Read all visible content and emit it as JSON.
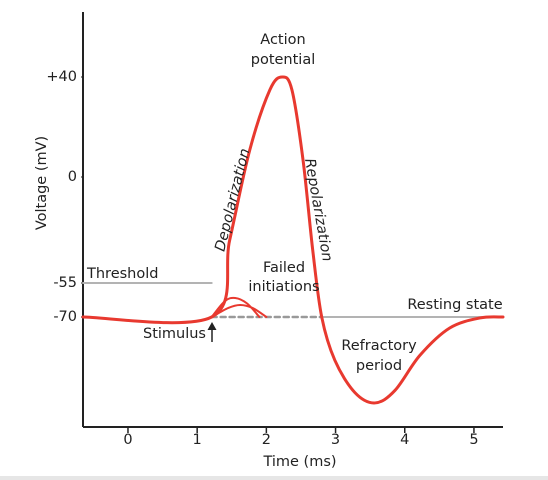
{
  "chart_data": {
    "type": "line",
    "xlabel": "Time (ms)",
    "ylabel": "Voltage (mV)",
    "xlim": [
      -0.65,
      5.42
    ],
    "ylim": [
      -118,
      66
    ],
    "xticks": [
      0,
      1,
      2,
      3,
      4,
      5
    ],
    "yticks": [
      {
        "value": 40,
        "label": "+40"
      },
      0,
      -55,
      -70
    ],
    "series": [
      {
        "color": "#b3b3b3",
        "width": 2,
        "dash": false,
        "x": [
          -0.65,
          1.21
        ],
        "values": [
          -55,
          -55
        ]
      },
      {
        "color": "#b3b3b3",
        "width": 2,
        "dash": false,
        "x": [
          2.8,
          5.42
        ],
        "values": [
          -70,
          -70
        ]
      },
      {
        "color": "#999999",
        "width": 2.5,
        "dash": true,
        "x": [
          1.21,
          2.8
        ],
        "values": [
          -70,
          -70
        ]
      },
      {
        "color": "#e8392f",
        "width": 2,
        "dash": false,
        "x": [
          1.21,
          1.4,
          1.55,
          1.72,
          1.9
        ],
        "values": [
          -70,
          -63,
          -61.6,
          -64,
          -70
        ]
      },
      {
        "color": "#e8392f",
        "width": 2,
        "dash": false,
        "x": [
          1.21,
          1.45,
          1.62,
          1.8,
          2.0
        ],
        "values": [
          -70,
          -66,
          -64.7,
          -66,
          -70
        ]
      },
      {
        "color": "#e8392f",
        "width": 3,
        "dash": false,
        "x": [
          -0.65,
          1.21,
          1.47,
          1.76,
          2.05,
          2.23,
          2.37,
          2.53,
          2.67,
          2.8,
          2.99,
          3.28,
          3.57,
          3.86,
          4.22,
          4.65,
          5.09,
          5.42
        ],
        "values": [
          -70,
          -70,
          -32.7,
          10.8,
          34.8,
          40,
          34.8,
          6.8,
          -37.9,
          -70,
          -88.9,
          -103,
          -107.5,
          -102,
          -86.7,
          -74.8,
          -70.4,
          -70
        ]
      }
    ],
    "annotations": [
      {
        "text": [
          "Action",
          "potential"
        ]
      },
      {
        "text": [
          "Depolarization"
        ]
      },
      {
        "text": [
          "Repolarization"
        ]
      },
      {
        "text": [
          "Failed",
          "initiations"
        ]
      },
      {
        "text": [
          "Resting state"
        ]
      },
      {
        "text": [
          "Refractory",
          "period"
        ]
      },
      {
        "text": [
          "Stimulus"
        ]
      },
      {
        "text": [
          "Threshold"
        ]
      }
    ]
  }
}
